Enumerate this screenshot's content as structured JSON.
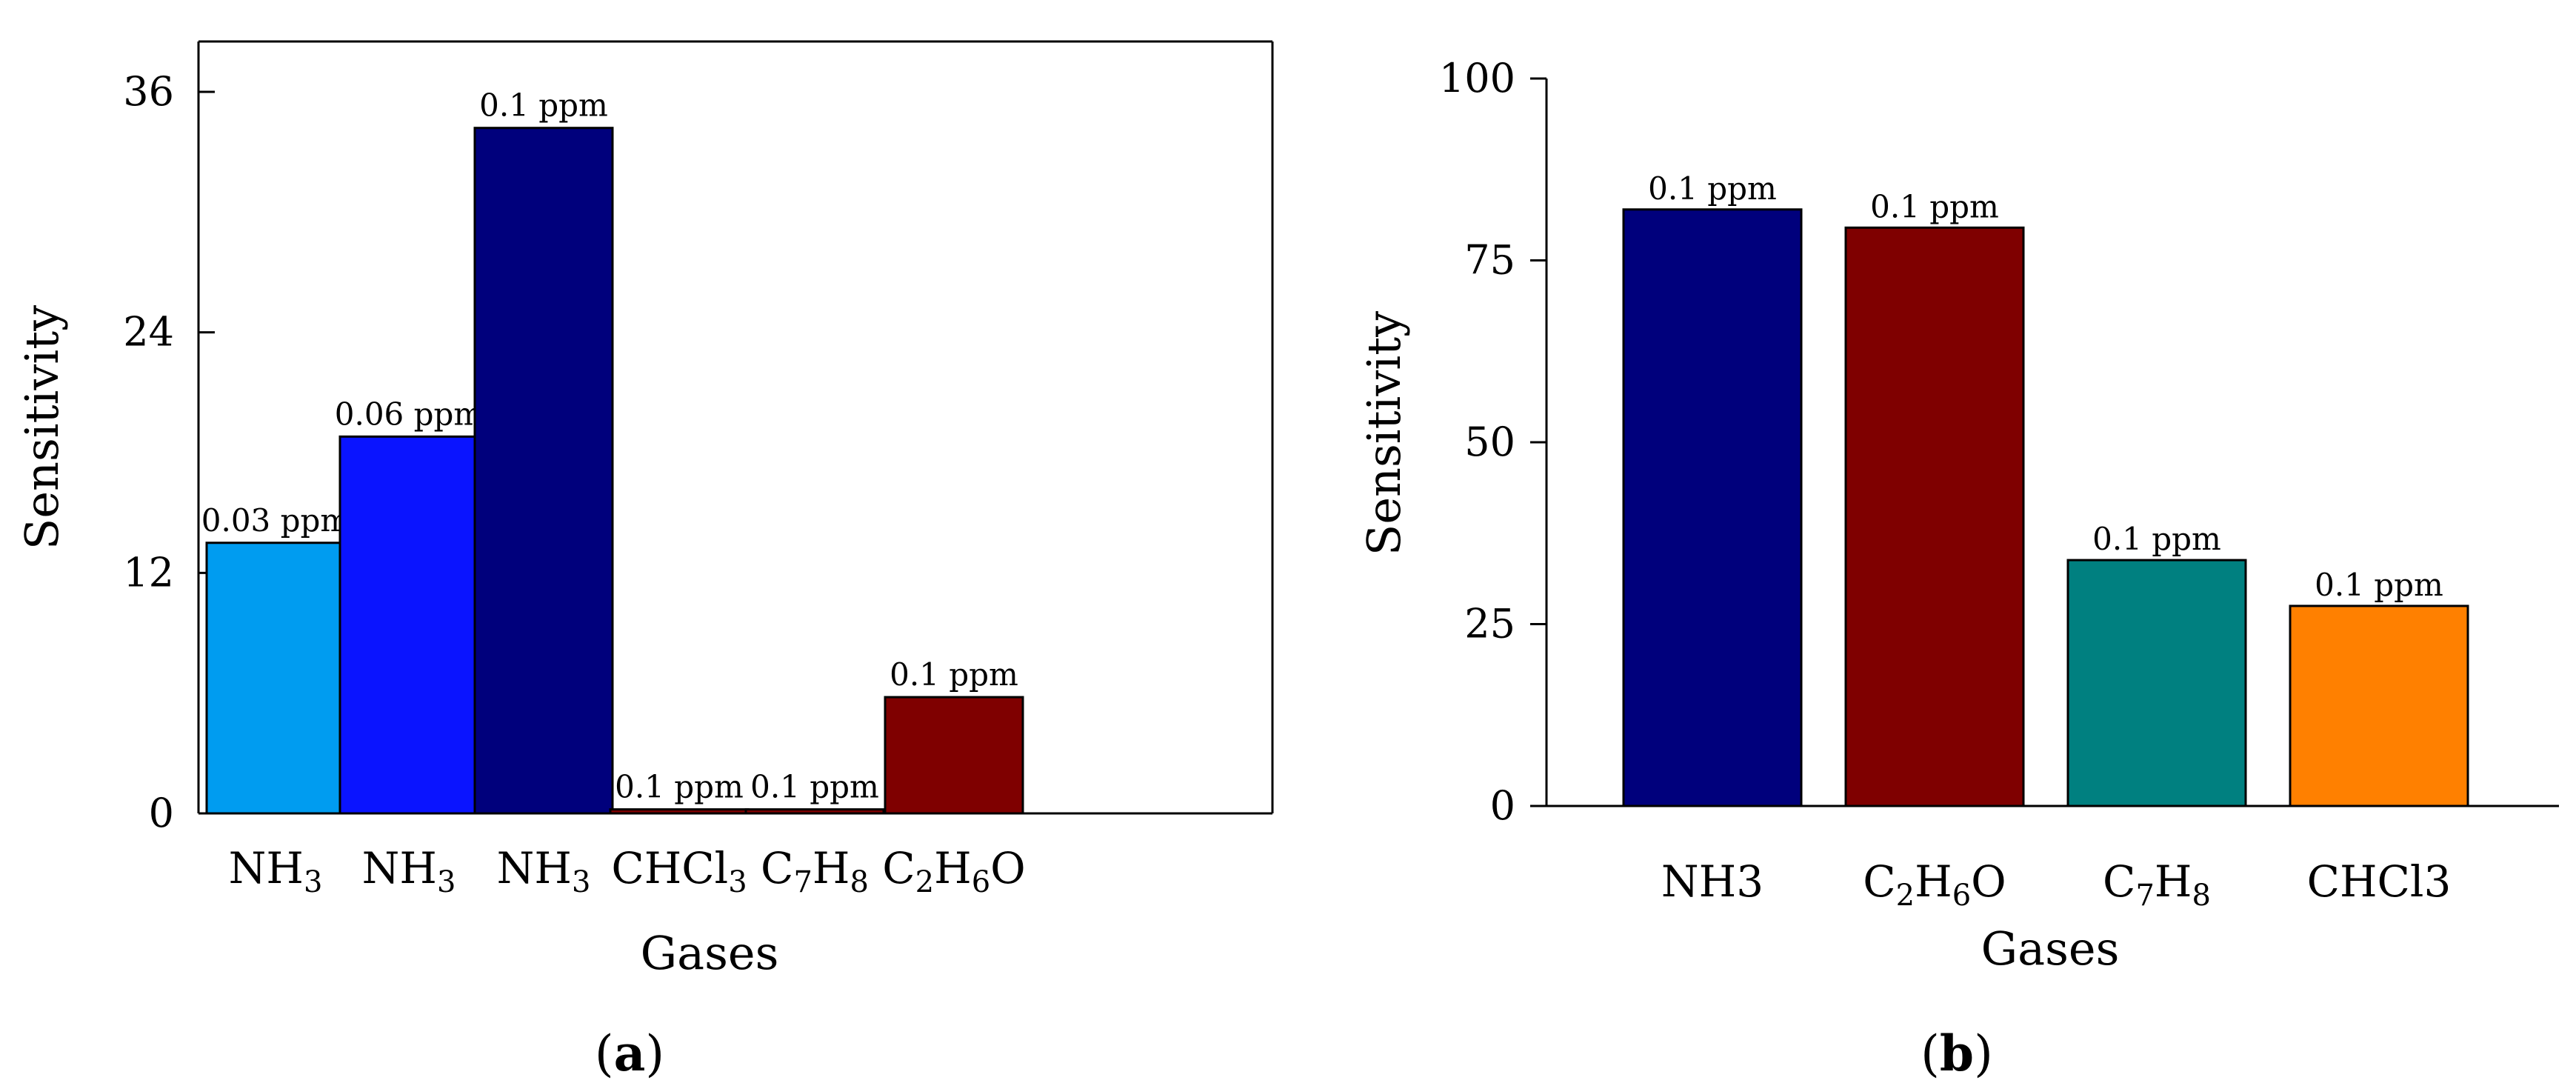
{
  "chart_data": [
    {
      "id": "a",
      "type": "bar",
      "caption_letter": "a",
      "title": "",
      "xlabel": "Gases",
      "ylabel": "Sensitivity",
      "ylim": [
        0,
        38
      ],
      "yticks": [
        0,
        12,
        24,
        36
      ],
      "grid": false,
      "categories": [
        {
          "base": "NH",
          "sub": "3",
          "rest": ""
        },
        {
          "base": "NH",
          "sub": "3",
          "rest": ""
        },
        {
          "base": "NH",
          "sub": "3",
          "rest": ""
        },
        {
          "base": "CHCl",
          "sub": "3",
          "rest": ""
        },
        {
          "parts": [
            [
              "C",
              ""
            ],
            [
              "7",
              "sub"
            ],
            [
              "H",
              ""
            ],
            [
              "8",
              "sub"
            ]
          ]
        },
        {
          "parts": [
            [
              "C",
              ""
            ],
            [
              "2",
              "sub"
            ],
            [
              "H",
              ""
            ],
            [
              "6",
              "sub"
            ],
            [
              "O",
              ""
            ]
          ]
        }
      ],
      "values": [
        13.5,
        18.8,
        34.2,
        0.2,
        0.2,
        5.8
      ],
      "data_labels": [
        "0.03 ppm",
        "0.06 ppm",
        "0.1 ppm",
        "0.1 ppm",
        "0.1 ppm",
        "0.1 ppm"
      ],
      "colors": [
        "#009cf0",
        "#0a14ff",
        "#00007c",
        "#7f0000",
        "#7f0000",
        "#7f0000"
      ]
    },
    {
      "id": "b",
      "type": "bar",
      "caption_letter": "b",
      "title": "",
      "xlabel": "Gases",
      "ylabel": "Sensitivity",
      "ylim": [
        0,
        100
      ],
      "yticks": [
        0,
        25,
        50,
        75,
        100
      ],
      "grid": false,
      "categories": [
        {
          "parts": [
            [
              "NH",
              ""
            ],
            [
              "3",
              ""
            ]
          ]
        },
        {
          "parts": [
            [
              "C",
              ""
            ],
            [
              "2",
              "sub"
            ],
            [
              "H",
              ""
            ],
            [
              "6",
              "sub"
            ],
            [
              "O",
              ""
            ]
          ]
        },
        {
          "parts": [
            [
              "C",
              ""
            ],
            [
              "7",
              "sub"
            ],
            [
              "H",
              ""
            ],
            [
              "8",
              "sub"
            ]
          ]
        },
        {
          "parts": [
            [
              "CHCl",
              ""
            ],
            [
              "3",
              ""
            ]
          ]
        }
      ],
      "values": [
        82,
        79.5,
        33.8,
        27.5
      ],
      "data_labels": [
        "0.1 ppm",
        "0.1 ppm",
        "0.1 ppm",
        "0.1 ppm"
      ],
      "colors": [
        "#00007c",
        "#7f0000",
        "#008080",
        "#ff8000"
      ]
    }
  ]
}
